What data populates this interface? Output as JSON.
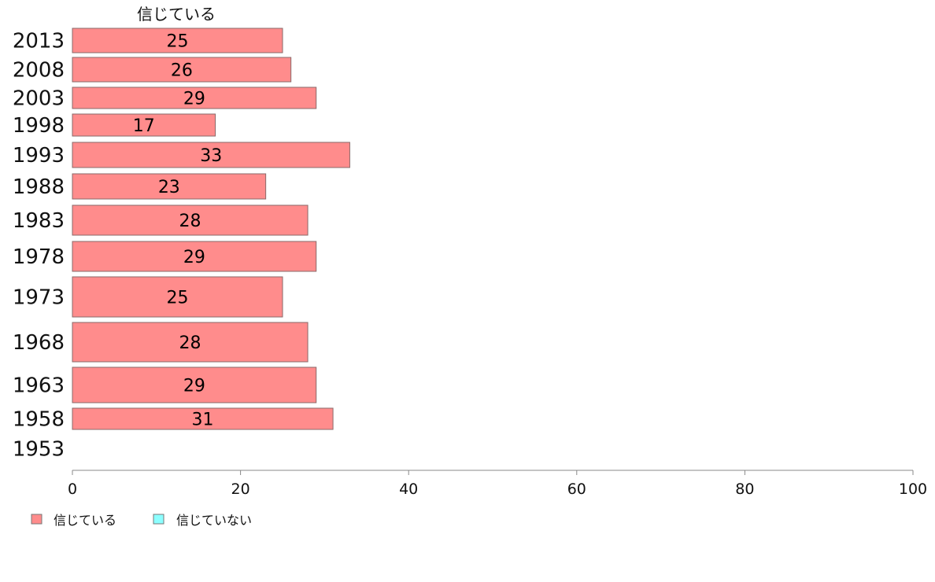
{
  "chart_data": {
    "type": "bar",
    "orientation": "horizontal",
    "title": "",
    "series_header": "信じている",
    "categories": [
      "2013",
      "2008",
      "2003",
      "1998",
      "1993",
      "1988",
      "1983",
      "1978",
      "1973",
      "1968",
      "1963",
      "1958",
      "1953"
    ],
    "series": [
      {
        "name": "信じている",
        "color": "#ff8c8c",
        "values": [
          25,
          26,
          29,
          17,
          33,
          23,
          28,
          29,
          25,
          28,
          29,
          31,
          null
        ]
      },
      {
        "name": "信じていない",
        "color": "#8cffff",
        "values": [
          null,
          null,
          null,
          null,
          null,
          null,
          null,
          null,
          null,
          null,
          null,
          null,
          null
        ]
      }
    ],
    "xlim": [
      0,
      100
    ],
    "xticks": [
      "0",
      "20",
      "40",
      "60",
      "80",
      "100"
    ],
    "grid": false,
    "legend_position": "bottom-left"
  }
}
